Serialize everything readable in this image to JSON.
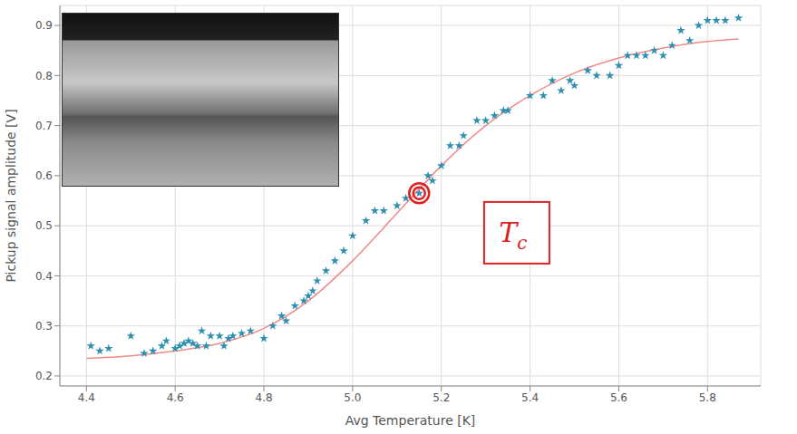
{
  "chart_data": {
    "type": "scatter",
    "x_label": "Avg Temperature [K]",
    "y_label": "Pickup signal amplitude [V]",
    "xlim": [
      4.34,
      5.92
    ],
    "ylim": [
      0.18,
      0.94
    ],
    "xticks": [
      4.4,
      4.6,
      4.8,
      {
        "value": 5,
        "label": "5.0"
      },
      5.2,
      5.4,
      5.6,
      5.8
    ],
    "yticks": [
      0.2,
      0.3,
      0.4,
      0.5,
      0.6,
      0.7,
      0.8,
      0.9
    ],
    "grid": true,
    "series": [
      {
        "type": "scatter",
        "color": "#2e8fae",
        "marker": "star",
        "x": [
          4.41,
          4.43,
          4.45,
          4.5,
          4.53,
          4.55,
          4.57,
          4.58,
          4.6,
          4.61,
          4.62,
          4.63,
          4.64,
          4.65,
          4.66,
          4.67,
          4.68,
          4.7,
          4.71,
          4.72,
          4.73,
          4.75,
          4.77,
          4.8,
          4.82,
          4.84,
          4.85,
          4.87,
          4.89,
          4.9,
          4.91,
          4.92,
          4.94,
          4.96,
          4.98,
          5.0,
          5.03,
          5.05,
          5.07,
          5.1,
          5.12,
          5.15,
          5.17,
          5.18,
          5.2,
          5.22,
          5.24,
          5.25,
          5.28,
          5.3,
          5.32,
          5.34,
          5.35,
          5.4,
          5.43,
          5.45,
          5.47,
          5.49,
          5.5,
          5.53,
          5.55,
          5.58,
          5.6,
          5.62,
          5.64,
          5.66,
          5.68,
          5.7,
          5.72,
          5.74,
          5.76,
          5.78,
          5.8,
          5.82,
          5.84,
          5.87
        ],
        "values": [
          0.26,
          0.25,
          0.255,
          0.28,
          0.245,
          0.25,
          0.26,
          0.27,
          0.255,
          0.26,
          0.265,
          0.27,
          0.265,
          0.26,
          0.29,
          0.26,
          0.28,
          0.28,
          0.26,
          0.275,
          0.28,
          0.285,
          0.29,
          0.275,
          0.3,
          0.32,
          0.31,
          0.34,
          0.35,
          0.36,
          0.37,
          0.39,
          0.41,
          0.43,
          0.45,
          0.48,
          0.51,
          0.53,
          0.53,
          0.54,
          0.555,
          0.565,
          0.6,
          0.59,
          0.62,
          0.66,
          0.66,
          0.68,
          0.71,
          0.71,
          0.72,
          0.73,
          0.73,
          0.76,
          0.76,
          0.79,
          0.77,
          0.79,
          0.78,
          0.81,
          0.8,
          0.8,
          0.82,
          0.84,
          0.84,
          0.84,
          0.85,
          0.84,
          0.86,
          0.89,
          0.87,
          0.9,
          0.91,
          0.91,
          0.91,
          0.915
        ]
      },
      {
        "type": "line",
        "color": "#f08a8a",
        "line_style": "solid",
        "x": [
          4.4,
          4.5,
          4.6,
          4.7,
          4.8,
          4.9,
          5.0,
          5.1,
          5.2,
          5.3,
          5.4,
          5.5,
          5.6,
          5.7,
          5.8,
          5.87
        ],
        "values": [
          0.235,
          0.24,
          0.25,
          0.265,
          0.295,
          0.35,
          0.43,
          0.525,
          0.62,
          0.7,
          0.76,
          0.805,
          0.835,
          0.855,
          0.868,
          0.873
        ]
      }
    ],
    "highlight": {
      "x": 5.15,
      "y": 0.565,
      "color": "#e02020"
    },
    "annotation": {
      "text": "T",
      "subscript": "c",
      "x": 5.37,
      "y": 0.486,
      "color": "#e02020"
    }
  }
}
